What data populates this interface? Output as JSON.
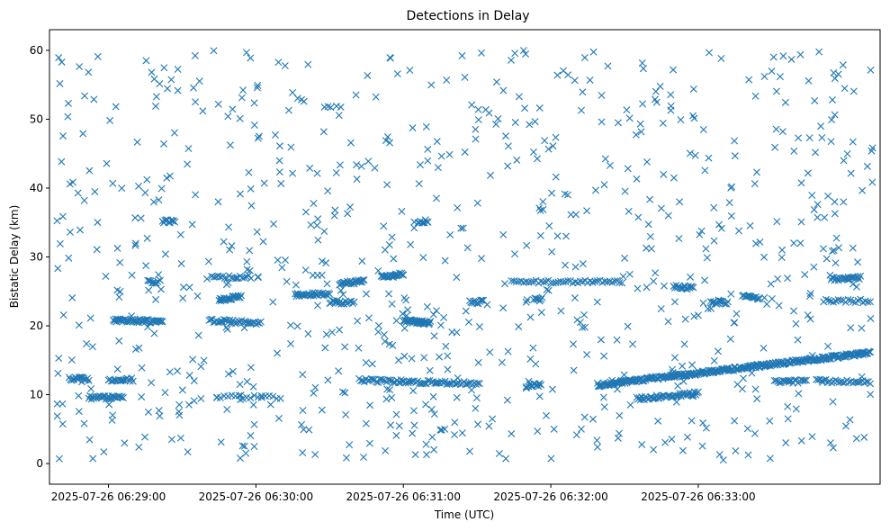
{
  "chart_data": {
    "type": "scatter",
    "title": "Detections in Delay",
    "xlabel": "Time (UTC)",
    "ylabel": "Bistatic Delay (km)",
    "marker": "x",
    "color": "#1f77b4",
    "x_unit": "seconds after 2025-07-26 06:28:00",
    "xlim": [
      36,
      374
    ],
    "ylim": [
      -3,
      63
    ],
    "x_ticks": [
      {
        "value": 60,
        "label": "2025-07-26 06:29:00"
      },
      {
        "value": 120,
        "label": "2025-07-26 06:30:00"
      },
      {
        "value": 180,
        "label": "2025-07-26 06:31:00"
      },
      {
        "value": 240,
        "label": "2025-07-26 06:32:00"
      },
      {
        "value": 300,
        "label": "2025-07-26 06:33:00"
      }
    ],
    "y_ticks": [
      {
        "value": 0,
        "label": "0"
      },
      {
        "value": 10,
        "label": "10"
      },
      {
        "value": 20,
        "label": "20"
      },
      {
        "value": 30,
        "label": "30"
      },
      {
        "value": 40,
        "label": "40"
      },
      {
        "value": 50,
        "label": "50"
      },
      {
        "value": 60,
        "label": "60"
      }
    ],
    "tracks": [
      {
        "x0": 44,
        "x1": 52,
        "y0": 12.3,
        "y1": 12.3,
        "step": 0.5
      },
      {
        "x0": 52,
        "x1": 66,
        "y0": 9.6,
        "y1": 9.6,
        "step": 0.5
      },
      {
        "x0": 60,
        "x1": 70,
        "y0": 12.2,
        "y1": 12.2,
        "step": 0.6
      },
      {
        "x0": 62,
        "x1": 82,
        "y0": 20.8,
        "y1": 20.6,
        "step": 0.4
      },
      {
        "x0": 76,
        "x1": 80,
        "y0": 26.4,
        "y1": 26.4,
        "step": 0.6
      },
      {
        "x0": 82,
        "x1": 87,
        "y0": 35.2,
        "y1": 35.2,
        "step": 0.5
      },
      {
        "x0": 105,
        "x1": 114,
        "y0": 23.8,
        "y1": 24.2,
        "step": 0.4
      },
      {
        "x0": 101,
        "x1": 122,
        "y0": 20.8,
        "y1": 20.4,
        "step": 0.6
      },
      {
        "x0": 102,
        "x1": 118,
        "y0": 27.1,
        "y1": 27.1,
        "step": 0.9
      },
      {
        "x0": 104,
        "x1": 130,
        "y0": 9.7,
        "y1": 9.6,
        "step": 1.5
      },
      {
        "x0": 136,
        "x1": 150,
        "y0": 24.5,
        "y1": 24.6,
        "step": 0.5
      },
      {
        "x0": 154,
        "x1": 164,
        "y0": 26.1,
        "y1": 26.5,
        "step": 0.4
      },
      {
        "x0": 150,
        "x1": 160,
        "y0": 23.4,
        "y1": 23.4,
        "step": 0.6
      },
      {
        "x0": 162,
        "x1": 211,
        "y0": 12.1,
        "y1": 11.6,
        "step": 0.7
      },
      {
        "x0": 171,
        "x1": 180,
        "y0": 27.1,
        "y1": 27.5,
        "step": 0.4
      },
      {
        "x0": 180,
        "x1": 191,
        "y0": 20.7,
        "y1": 20.4,
        "step": 0.3
      },
      {
        "x0": 186,
        "x1": 190,
        "y0": 35.2,
        "y1": 35.2,
        "step": 0.5
      },
      {
        "x0": 207,
        "x1": 212,
        "y0": 23.5,
        "y1": 23.5,
        "step": 0.5
      },
      {
        "x0": 224,
        "x1": 268,
        "y0": 26.4,
        "y1": 26.4,
        "step": 1.0
      },
      {
        "x0": 231,
        "x1": 236,
        "y0": 11.4,
        "y1": 11.4,
        "step": 0.5
      },
      {
        "x0": 233,
        "x1": 236,
        "y0": 23.8,
        "y1": 23.8,
        "step": 0.5
      },
      {
        "x0": 259,
        "x1": 370,
        "y0": 11.4,
        "y1": 16.1,
        "step": 0.35
      },
      {
        "x0": 275,
        "x1": 300,
        "y0": 9.4,
        "y1": 10.2,
        "step": 0.5
      },
      {
        "x0": 290,
        "x1": 298,
        "y0": 25.7,
        "y1": 25.5,
        "step": 0.5
      },
      {
        "x0": 305,
        "x1": 312,
        "y0": 23.4,
        "y1": 23.4,
        "step": 0.5
      },
      {
        "x0": 318,
        "x1": 325,
        "y0": 24.5,
        "y1": 24.0,
        "step": 0.5
      },
      {
        "x0": 331,
        "x1": 344,
        "y0": 11.9,
        "y1": 11.9,
        "step": 0.7
      },
      {
        "x0": 348,
        "x1": 370,
        "y0": 12.0,
        "y1": 11.8,
        "step": 0.8
      },
      {
        "x0": 354,
        "x1": 366,
        "y0": 26.8,
        "y1": 27.0,
        "step": 0.5
      },
      {
        "x0": 351,
        "x1": 370,
        "y0": 23.6,
        "y1": 23.6,
        "step": 1.0
      }
    ],
    "background_detections": {
      "count": 820,
      "x_range": [
        39,
        371
      ],
      "y_range": [
        0.5,
        60
      ],
      "seed": 20250726
    }
  }
}
